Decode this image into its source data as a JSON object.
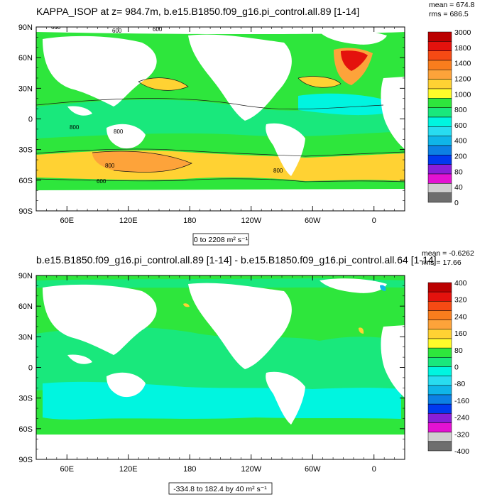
{
  "colors": {
    "land": "#ffffff",
    "frame": "#000000",
    "contour": "#1a1a1a"
  },
  "chart_data": [
    {
      "type": "heatmap",
      "title": "KAPPA_ISOP at z= 984.7m, b.e15.B1850.f09_g16.pi_control.all.89 [1-14]",
      "stats": {
        "mean": "mean = 674.8",
        "rms": "rms = 686.5"
      },
      "range_label": "0 to 2208 m² s⁻¹",
      "xticks": [
        "60E",
        "120E",
        "180",
        "120W",
        "60W",
        "0"
      ],
      "xtick_lon": [
        60,
        120,
        180,
        240,
        300,
        360
      ],
      "yticks": [
        "90N",
        "60N",
        "30N",
        "0",
        "30S",
        "60S",
        "90S"
      ],
      "ytick_lat": [
        90,
        60,
        30,
        0,
        -30,
        -60,
        -90
      ],
      "xlim_lon": [
        30,
        390
      ],
      "ylim_lat": [
        -90,
        90
      ],
      "colorbar_labels": [
        "3000",
        "1800",
        "1400",
        "1200",
        "1000",
        "800",
        "600",
        "400",
        "200",
        "80",
        "40",
        "0"
      ],
      "colorbar_colors": [
        "#bb0000",
        "#e4120d",
        "#f54a14",
        "#f97d1d",
        "#fda33a",
        "#ffd233",
        "#fffb2a",
        "#2ee63c",
        "#19e87c",
        "#00f5e0",
        "#28dcf0",
        "#0fb5e8",
        "#0c80e4",
        "#0039ef",
        "#8a1ed8",
        "#e312d2",
        "#cfcfcf",
        "#6e6e6e"
      ],
      "contour_labels": [
        "600",
        "600",
        "600",
        "800",
        "800",
        "800",
        "800",
        "600"
      ]
    },
    {
      "type": "heatmap",
      "title": "b.e15.B1850.f09_g16.pi_control.all.89 [1-14] - b.e15.B1850.f09_g16.pi_control.all.64 [1-14]",
      "stats": {
        "mean": "mean = -0.6262",
        "rms": "rms = 17.66"
      },
      "range_label": "-334.8 to 182.4 by 40 m² s⁻¹",
      "xticks": [
        "60E",
        "120E",
        "180",
        "120W",
        "60W",
        "0"
      ],
      "xtick_lon": [
        60,
        120,
        180,
        240,
        300,
        360
      ],
      "yticks": [
        "90N",
        "60N",
        "30N",
        "0",
        "30S",
        "60S",
        "90S"
      ],
      "ytick_lat": [
        90,
        60,
        30,
        0,
        -30,
        -60,
        -90
      ],
      "xlim_lon": [
        30,
        390
      ],
      "ylim_lat": [
        -90,
        90
      ],
      "colorbar_labels": [
        "400",
        "320",
        "240",
        "160",
        "80",
        "0",
        "-80",
        "-160",
        "-240",
        "-320",
        "-400"
      ],
      "colorbar_colors": [
        "#bb0000",
        "#e4120d",
        "#f54a14",
        "#f97d1d",
        "#fda33a",
        "#ffd233",
        "#fffb2a",
        "#2ee63c",
        "#19e87c",
        "#00f5e0",
        "#28dcf0",
        "#0fb5e8",
        "#0c80e4",
        "#0039ef",
        "#8a1ed8",
        "#e312d2",
        "#cfcfcf",
        "#6e6e6e"
      ]
    }
  ]
}
